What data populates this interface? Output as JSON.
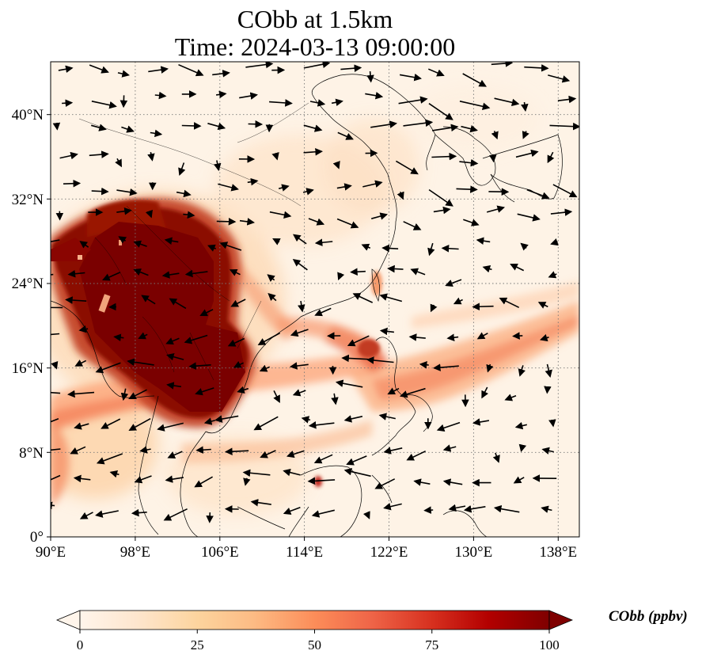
{
  "title": {
    "line1": "CObb at 1.5km",
    "line2": "Time: 2024-03-13 09:00:00"
  },
  "axes": {
    "lon_ticks": [
      "90°E",
      "98°E",
      "106°E",
      "114°E",
      "122°E",
      "130°E",
      "138°E"
    ],
    "lat_ticks": [
      "40°N",
      "32°N",
      "24°N",
      "16°N",
      "8°N",
      "0°"
    ],
    "lon_range": [
      90,
      140
    ],
    "lat_range": [
      0,
      45
    ],
    "grid": "dotted"
  },
  "colorbar": {
    "label": "CObb (ppbv)",
    "ticks": [
      "0",
      "25",
      "50",
      "75",
      "100"
    ],
    "range": [
      0,
      100
    ],
    "extend": "both",
    "colormap": [
      "#fff5eb",
      "#fee6ce",
      "#fdd0a2",
      "#fdae6b",
      "#fd8d3c",
      "#f16913",
      "#d94801",
      "#a63603",
      "#7f2704"
    ],
    "max_color": "#7f0000"
  },
  "map": {
    "projection": "PlateCarree",
    "background": "#fef3e6",
    "coastline_color": "#000000",
    "wind_vector_color": "#000000"
  }
}
